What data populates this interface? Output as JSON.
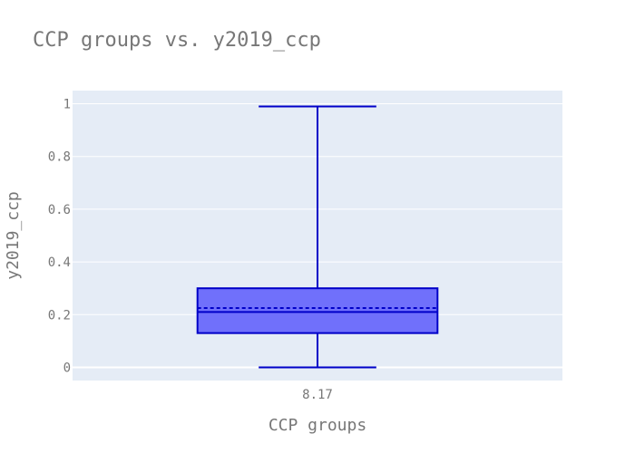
{
  "chart_data": {
    "type": "box",
    "title": "CCP groups vs. y2019_ccp",
    "xlabel": "CCP groups",
    "ylabel": "y2019_ccp",
    "categories": [
      "8.17"
    ],
    "y_ticks": [
      "0",
      "0.2",
      "0.4",
      "0.6",
      "0.8",
      "1"
    ],
    "ylim": [
      -0.05,
      1.05
    ],
    "grid": true,
    "series": [
      {
        "category": "8.17",
        "min": 0.0,
        "q1": 0.13,
        "median": 0.21,
        "mean": 0.225,
        "q3": 0.3,
        "max": 0.99
      }
    ],
    "colors": {
      "background": "#e5ecf6",
      "grid": "#ffffff",
      "box_fill": "#7070fb",
      "box_line": "#0000c8",
      "text": "#777777"
    }
  }
}
